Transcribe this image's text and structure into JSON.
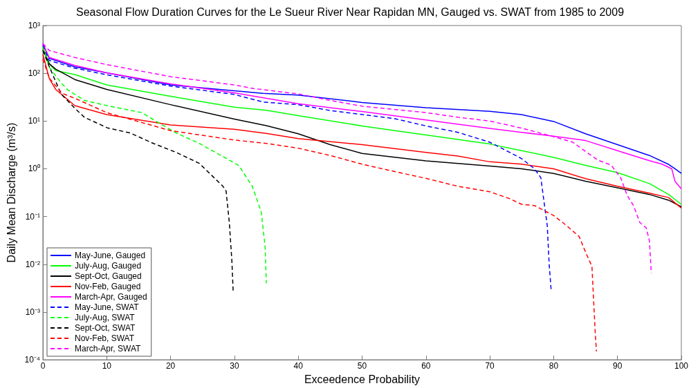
{
  "chart_data": {
    "type": "line",
    "title": "Seasonal Flow Duration Curves for the Le Sueur River Near Rapidan MN, Gauged vs. SWAT from 1985 to 2009",
    "xlabel": "Exceedence Probability",
    "ylabel": "Daily Mean Discharge (m³/s)",
    "log": "y",
    "grid": false,
    "legend": "bottom left",
    "marker": "none",
    "xlim": [
      0,
      100
    ],
    "xticks": [
      0,
      10,
      20,
      30,
      40,
      50,
      60,
      70,
      80,
      90,
      100
    ],
    "ylim": [
      0.0001,
      1000
    ],
    "yticks": [
      {
        "value": 0.0001,
        "label": "10⁻⁴"
      },
      {
        "value": 0.001,
        "label": "10⁻³"
      },
      {
        "value": 0.01,
        "label": "10⁻²"
      },
      {
        "value": 0.1,
        "label": "10⁻¹"
      },
      {
        "value": 1,
        "label": "10⁰"
      },
      {
        "value": 10,
        "label": "10¹"
      },
      {
        "value": 100,
        "label": "10²"
      },
      {
        "value": 1000,
        "label": "10³"
      }
    ],
    "series": [
      {
        "name": "May-June, Gauged",
        "color": "#0000ff",
        "line_style": "solid",
        "x": [
          0,
          1,
          5,
          10,
          20,
          30,
          34.5,
          40,
          50,
          60,
          70,
          75,
          80,
          85,
          90,
          95,
          98,
          99,
          100
        ],
        "values": [
          420,
          205,
          137,
          102,
          57,
          43,
          38,
          35,
          24.5,
          19,
          16,
          13.6,
          9.8,
          5.4,
          3.2,
          1.9,
          1.24,
          1.0,
          0.8
        ]
      },
      {
        "name": "July-Aug, Gauged",
        "color": "#00ff00",
        "line_style": "solid",
        "x": [
          0,
          1,
          2,
          5,
          10,
          20,
          30,
          35,
          40,
          50,
          60,
          70,
          75,
          80,
          85,
          90,
          95,
          98,
          100
        ],
        "values": [
          350,
          158,
          114,
          94,
          57,
          33,
          19.5,
          16.8,
          13,
          7.9,
          5.1,
          3.3,
          2.4,
          1.73,
          1.18,
          0.83,
          0.49,
          0.29,
          0.18
        ]
      },
      {
        "name": "Sept-Oct, Gauged",
        "color": "#000000",
        "line_style": "solid",
        "x": [
          0,
          1,
          2,
          5,
          10,
          20,
          30,
          35,
          40,
          45,
          50,
          60,
          70,
          75,
          80,
          85,
          90,
          95,
          98,
          100
        ],
        "values": [
          310,
          158,
          122,
          74,
          46,
          22,
          11,
          8,
          5.4,
          3.2,
          2.1,
          1.46,
          1.14,
          1.0,
          0.8,
          0.55,
          0.4,
          0.29,
          0.22,
          0.16
        ]
      },
      {
        "name": "Nov-Feb, Gauged",
        "color": "#ff0000",
        "line_style": "solid",
        "x": [
          0,
          1,
          2,
          5,
          10,
          20,
          30,
          35,
          40,
          50,
          60,
          65,
          70,
          75,
          80,
          85,
          90,
          95,
          98,
          100
        ],
        "values": [
          250,
          78,
          46,
          21,
          13.6,
          8.3,
          6.7,
          5.5,
          4.3,
          3.2,
          2.2,
          1.85,
          1.4,
          1.25,
          1.0,
          0.62,
          0.43,
          0.31,
          0.25,
          0.15
        ]
      },
      {
        "name": "March-Apr, Gauged",
        "color": "#ff00ff",
        "line_style": "solid",
        "x": [
          0,
          1,
          5,
          10,
          20,
          30,
          40,
          50,
          60,
          70,
          75,
          80,
          85,
          90,
          95,
          97,
          98.5,
          99,
          100
        ],
        "values": [
          400,
          214,
          146,
          102,
          60,
          39,
          23,
          15.8,
          10.5,
          7,
          5.8,
          4.8,
          3.9,
          2.4,
          1.48,
          1.25,
          1.0,
          0.55,
          0.38
        ]
      },
      {
        "name": "May-June, SWAT",
        "color": "#0000ff",
        "line_style": "dashed",
        "x": [
          0,
          1,
          5,
          10,
          20,
          30,
          34.5,
          40,
          45,
          50,
          55,
          60,
          65,
          70,
          73,
          75,
          77,
          78,
          78.5,
          79,
          79.3,
          79.6
        ],
        "values": [
          380,
          186,
          128,
          93,
          54,
          36,
          25,
          22,
          16.6,
          13.7,
          11.3,
          7.9,
          5.8,
          3.6,
          2.25,
          1.63,
          1.0,
          0.65,
          0.2,
          0.065,
          0.01,
          0.003
        ]
      },
      {
        "name": "July-Aug, SWAT",
        "color": "#00ff00",
        "line_style": "dashed",
        "x": [
          0,
          1,
          2.85,
          3.9,
          6.5,
          10.1,
          15.5,
          18,
          20.9,
          24.5,
          28.2,
          30.7,
          32.6,
          32.8,
          34.2,
          34.8,
          35
        ],
        "values": [
          350,
          134,
          63,
          45,
          27,
          21,
          15,
          9.4,
          5.6,
          3.4,
          1.8,
          1.17,
          0.47,
          0.43,
          0.125,
          0.024,
          0.004
        ]
      },
      {
        "name": "Sept-Oct, SWAT",
        "color": "#000000",
        "line_style": "dashed",
        "x": [
          0,
          1,
          2.85,
          5,
          6.5,
          10.1,
          13.7,
          17.3,
          20.9,
          24.5,
          28.2,
          28.7,
          29.2,
          29.6,
          29.8
        ],
        "values": [
          300,
          138,
          37,
          18.5,
          12,
          7.2,
          5.6,
          3.4,
          2.2,
          1.3,
          0.43,
          0.34,
          0.075,
          0.012,
          0.0028
        ]
      },
      {
        "name": "Nov-Feb, SWAT",
        "color": "#ff0000",
        "line_style": "dashed",
        "x": [
          0,
          1,
          3,
          5,
          10,
          20,
          30,
          35,
          40,
          45,
          50,
          55,
          60,
          65,
          70,
          73,
          75,
          77,
          80,
          82,
          84,
          85,
          86,
          86.3,
          86.5,
          86.7
        ],
        "values": [
          200,
          79,
          38,
          30,
          15,
          6.3,
          4,
          3.4,
          2.7,
          1.9,
          1.25,
          0.88,
          0.63,
          0.43,
          0.33,
          0.24,
          0.18,
          0.17,
          0.105,
          0.065,
          0.038,
          0.018,
          0.009,
          0.0014,
          0.0004,
          0.00015
        ]
      },
      {
        "name": "March-Apr, SWAT",
        "color": "#ff00ff",
        "line_style": "dashed",
        "x": [
          0,
          1,
          5,
          10,
          20,
          30,
          33,
          40,
          45,
          50,
          55,
          60,
          65,
          70,
          75,
          80,
          83,
          85,
          87,
          89,
          90.5,
          91.5,
          92.5,
          93.5,
          94.5,
          95,
          95.3
        ],
        "values": [
          420,
          300,
          215,
          152,
          85,
          57,
          48,
          37,
          27,
          20.5,
          17.5,
          15,
          12,
          10,
          7.1,
          4.7,
          3.6,
          2.3,
          1.5,
          1.2,
          0.65,
          0.28,
          0.17,
          0.075,
          0.058,
          0.031,
          0.0065
        ]
      }
    ]
  }
}
